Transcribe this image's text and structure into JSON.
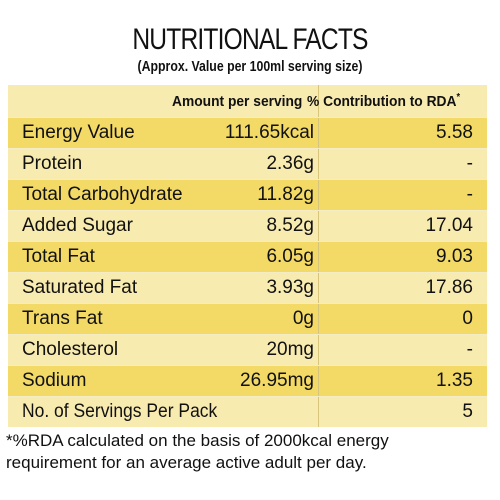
{
  "title": "NUTRITIONAL FACTS",
  "subtitle": "(Approx. Value per 100ml serving size)",
  "header": {
    "amount": "Amount per serving",
    "rda": "% Contribution to RDA",
    "rda_marker": "*"
  },
  "rows": [
    {
      "name": "Energy Value",
      "amount": "111.65kcal",
      "rda": "5.58"
    },
    {
      "name": "Protein",
      "amount": "2.36g",
      "rda": "-"
    },
    {
      "name": "Total Carbohydrate",
      "amount": "11.82g",
      "rda": "-"
    },
    {
      "name": "Added Sugar",
      "amount": "8.52g",
      "rda": "17.04"
    },
    {
      "name": "Total Fat",
      "amount": "6.05g",
      "rda": "9.03"
    },
    {
      "name": "Saturated Fat",
      "amount": "3.93g",
      "rda": "17.86"
    },
    {
      "name": "Trans Fat",
      "amount": "0g",
      "rda": "0"
    },
    {
      "name": "Cholesterol",
      "amount": "20mg",
      "rda": "-"
    },
    {
      "name": "Sodium",
      "amount": "26.95mg",
      "rda": "1.35"
    },
    {
      "name": "No. of Servings Per Pack",
      "amount": "",
      "rda": "5"
    }
  ],
  "footnote_line1": "*%RDA calculated on the basis of 2000kcal energy",
  "footnote_line2": "requirement for an average active adult per day.",
  "colors": {
    "dark_row": "#f3d966",
    "light_row": "#f8ebb0"
  }
}
